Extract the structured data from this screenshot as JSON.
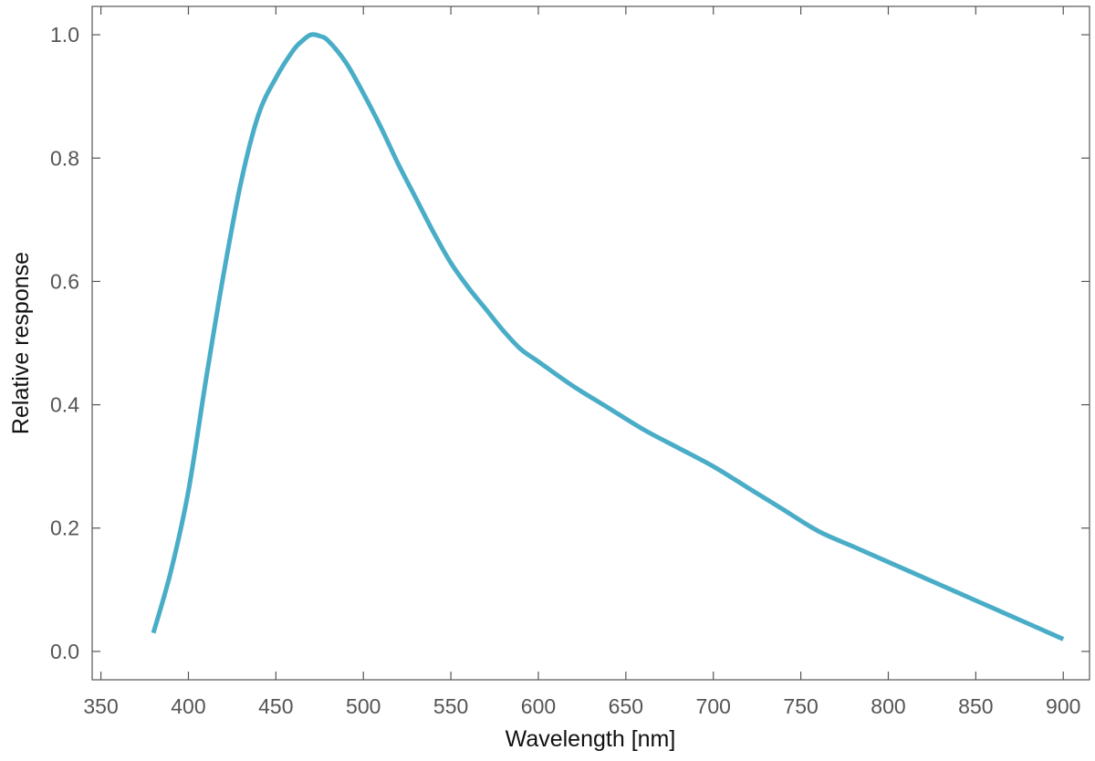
{
  "chart_data": {
    "type": "line",
    "title": "",
    "xlabel": "Wavelength [nm]",
    "ylabel": "Relative response",
    "xlim": [
      345,
      915
    ],
    "ylim": [
      -0.046,
      1.046
    ],
    "xticks": [
      350,
      400,
      450,
      500,
      550,
      600,
      650,
      700,
      750,
      800,
      850,
      900
    ],
    "xtick_labels": [
      "350",
      "400",
      "450",
      "500",
      "550",
      "600",
      "650",
      "700",
      "750",
      "800",
      "850",
      "900"
    ],
    "yticks": [
      0.0,
      0.2,
      0.4,
      0.6,
      0.8,
      1.0
    ],
    "ytick_labels": [
      "0.0",
      "0.2",
      "0.4",
      "0.6",
      "0.8",
      "1.0"
    ],
    "grid": false,
    "legend": "none",
    "series": [
      {
        "color": "#4aadc7",
        "x": [
          380,
          390,
          400,
          410,
          420,
          430,
          440,
          450,
          460,
          465,
          470,
          475,
          480,
          490,
          500,
          510,
          520,
          530,
          540,
          550,
          560,
          570,
          580,
          590,
          600,
          620,
          640,
          660,
          680,
          700,
          720,
          740,
          760,
          780,
          800,
          820,
          840,
          860,
          880,
          900
        ],
        "y": [
          0.03,
          0.13,
          0.26,
          0.44,
          0.61,
          0.76,
          0.87,
          0.93,
          0.975,
          0.99,
          1.0,
          0.998,
          0.99,
          0.955,
          0.905,
          0.85,
          0.79,
          0.735,
          0.68,
          0.63,
          0.59,
          0.555,
          0.52,
          0.49,
          0.47,
          0.43,
          0.395,
          0.36,
          0.33,
          0.3,
          0.265,
          0.23,
          0.195,
          0.17,
          0.145,
          0.12,
          0.095,
          0.07,
          0.045,
          0.02
        ]
      }
    ]
  }
}
